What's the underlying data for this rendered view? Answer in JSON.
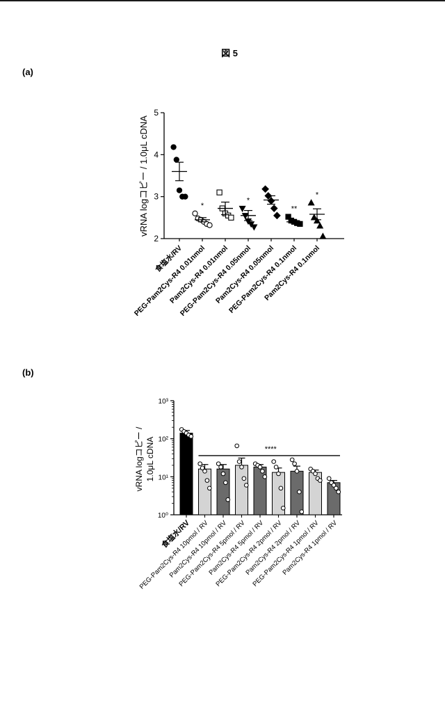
{
  "figure": {
    "title": "図 5",
    "panel_a_label": "(a)",
    "panel_b_label": "(b)"
  },
  "chart_data": [
    {
      "id": "a",
      "type": "scatter",
      "ylabel": "vRNA logコピー / 1.0μL cDNA",
      "ylim": [
        2,
        5
      ],
      "yticks": [
        "2",
        "3",
        "4",
        "5"
      ],
      "categories": [
        "食塩水/RV",
        "PEG-Pam2Cys-R4 0.01nmol",
        "Pam2Cys-R4 0.01nmol",
        "PEG-Pam2Cys-R4 0.05nmol",
        "Pam2Cys-R4 0.05nmol",
        "PEG-Pam2Cys-R4 0.1nmol",
        "Pam2Cys-R4 0.1nmol"
      ],
      "markers": [
        "circle-filled",
        "circle-open",
        "square-open",
        "triangle-down-filled",
        "diamond-filled",
        "square-filled",
        "triangle-up-filled"
      ],
      "points": [
        [
          4.18,
          3.88,
          3.15,
          3.0,
          3.0
        ],
        [
          2.6,
          2.48,
          2.45,
          2.4,
          2.35,
          2.32
        ],
        [
          3.1,
          2.72,
          2.6,
          2.55,
          2.5
        ],
        [
          2.72,
          2.55,
          2.42,
          2.35,
          2.28
        ],
        [
          3.18,
          3.02,
          2.9,
          2.72,
          2.55
        ],
        [
          2.52,
          2.43,
          2.4,
          2.37,
          2.35
        ],
        [
          2.85,
          2.5,
          2.42,
          2.3,
          2.05
        ]
      ],
      "mean": [
        3.6,
        2.45,
        2.72,
        2.55,
        2.92,
        2.4,
        2.58
      ],
      "sem": [
        0.22,
        0.05,
        0.15,
        0.12,
        0.1,
        0.03,
        0.13
      ],
      "annotations": [
        "",
        "*",
        "",
        "*",
        "",
        "**",
        "*"
      ]
    },
    {
      "id": "b",
      "type": "bar",
      "scale": "log",
      "ylabel_line1": "vRNA logコピー /",
      "ylabel_line2": "1.0μL cDNA",
      "ylim": [
        1,
        1000
      ],
      "yticks": [
        "10⁰",
        "10¹",
        "10²",
        "10³"
      ],
      "categories": [
        "食塩水/RV",
        "PEG-Pam2Cys-R4 10pmol / RV",
        "Pam2Cys-R4 10pmol / RV",
        "PEG-Pam2Cys-R4 5pmol / RV",
        "Pam2Cys-R4 5pmol / RV",
        "PEG-Pam2Cys-R4 2pmol / RV",
        "Pam2Cys-R4 2pmol / RV",
        "PEG-Pam2Cys-R4 1pmol / RV",
        "Pam2Cys-R4 1pmol / RV"
      ],
      "fills": [
        "#000000",
        "#d4d4d4",
        "#6b6b6b",
        "#d4d4d4",
        "#6b6b6b",
        "#d4d4d4",
        "#6b6b6b",
        "#d4d4d4",
        "#6b6b6b"
      ],
      "values": [
        140,
        16,
        16,
        20,
        18,
        13,
        14,
        13,
        7
      ],
      "error_high": [
        165,
        21,
        21,
        31,
        21,
        17,
        19,
        15,
        8
      ],
      "points": [
        [
          175,
          155,
          140,
          125,
          115
        ],
        [
          22,
          17,
          14,
          8,
          5
        ],
        [
          22,
          18,
          12,
          7,
          2.5
        ],
        [
          65,
          25,
          18,
          9,
          6
        ],
        [
          22,
          20,
          18,
          14,
          10
        ],
        [
          25,
          18,
          12,
          5,
          1.5
        ],
        [
          28,
          22,
          14,
          4,
          1.2
        ],
        [
          16,
          14,
          12,
          9,
          8
        ],
        [
          9,
          7,
          6,
          5,
          4
        ]
      ],
      "significance": "****",
      "significance_span": [
        1,
        8
      ]
    }
  ]
}
